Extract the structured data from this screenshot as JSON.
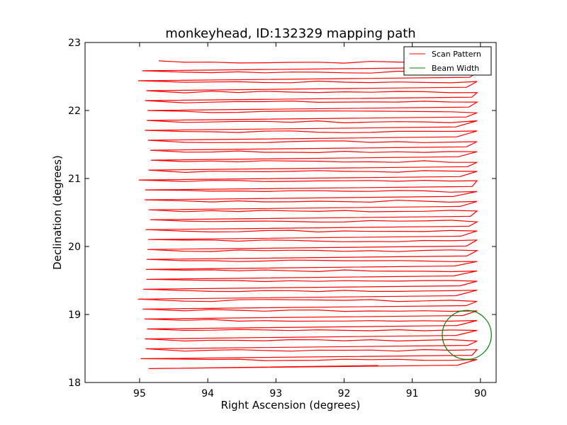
{
  "chart_data": {
    "type": "line",
    "title": "monkeyhead, ID:132329 mapping path",
    "xlabel": "Right Ascension (degrees)",
    "ylabel": "Declination (degrees)",
    "xlim": [
      95.8,
      89.77
    ],
    "ylim": [
      18,
      23
    ],
    "x_inverted": true,
    "xticks": [
      95,
      94,
      93,
      92,
      91,
      90
    ],
    "yticks": [
      18,
      19,
      20,
      21,
      22,
      23
    ],
    "legend": {
      "position": "top-right",
      "entries": [
        "Scan Pattern",
        "Beam Width"
      ]
    },
    "colors": {
      "scan": "#ff0000",
      "beam": "#008000"
    },
    "series": [
      {
        "name": "Scan Pattern",
        "type": "zigzag-scan",
        "ra_start": 94.72,
        "dec_start": 22.73,
        "ra_right_edge": 90.05,
        "ra_left_edge": 94.93,
        "dec_end": 18.25,
        "ra_end": 91.5,
        "row_spacing": 0.146,
        "rows": 32
      },
      {
        "name": "Beam Width",
        "type": "circle",
        "center_ra": 90.2,
        "center_dec": 18.7,
        "radius_deg": 0.36
      }
    ]
  }
}
